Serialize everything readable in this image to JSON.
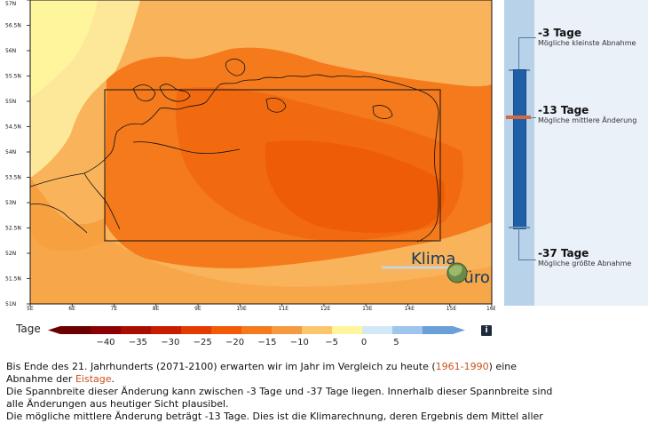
{
  "map": {
    "lat_labels": [
      "57N",
      "56.5N",
      "56N",
      "55.5N",
      "55N",
      "54.5N",
      "54N",
      "53.5N",
      "53N",
      "52.5N",
      "52N",
      "51.5N",
      "51N"
    ],
    "lon_labels": [
      "5E",
      "6E",
      "7E",
      "8E",
      "9E",
      "10E",
      "11E",
      "12E",
      "13E",
      "14E",
      "15E",
      "16E"
    ],
    "brand": {
      "line1": "Klima",
      "line2": "büro"
    }
  },
  "range": {
    "top": {
      "value": "-3 Tage",
      "desc": "Mögliche kleinste Abnahme"
    },
    "mid": {
      "value": "-13 Tage",
      "desc": "Mögliche mittlere Änderung"
    },
    "bottom": {
      "value": "-37 Tage",
      "desc": "Mögliche größte Abnahme"
    }
  },
  "legend": {
    "title": "Tage",
    "ticks": [
      "−40",
      "−35",
      "−30",
      "−25",
      "−20",
      "−15",
      "−10",
      "−5",
      "0",
      "5"
    ],
    "colors": [
      "#6b0000",
      "#8b0000",
      "#a80d00",
      "#c71c00",
      "#e33a00",
      "#f25a05",
      "#f47a1c",
      "#f59a40",
      "#fbc56e",
      "#fff59d",
      "#d3e8f7",
      "#9fc5ec",
      "#6a9fd8"
    ],
    "info_icon": "i"
  },
  "text": {
    "p1a": "Bis Ende des 21. Jahrhunderts (2071-2100) erwarten wir im Jahr im Vergleich zu heute (",
    "p1_link": "1961-1990",
    "p1b": ") eine",
    "p2a": "Abnahme der ",
    "p2_link": "Eistage",
    "p2b": ".",
    "p3": "Die Spannbreite dieser Änderung kann zwischen -3 Tage und -37 Tage liegen. Innerhalb dieser Spannbreite sind",
    "p4": "alle Änderungen aus heutiger Sicht plausibel.",
    "p5": "Die mögliche mittlere Änderung beträgt -13 Tage. Dies ist die Klimarechnung, deren Ergebnis dem Mittel aller"
  }
}
